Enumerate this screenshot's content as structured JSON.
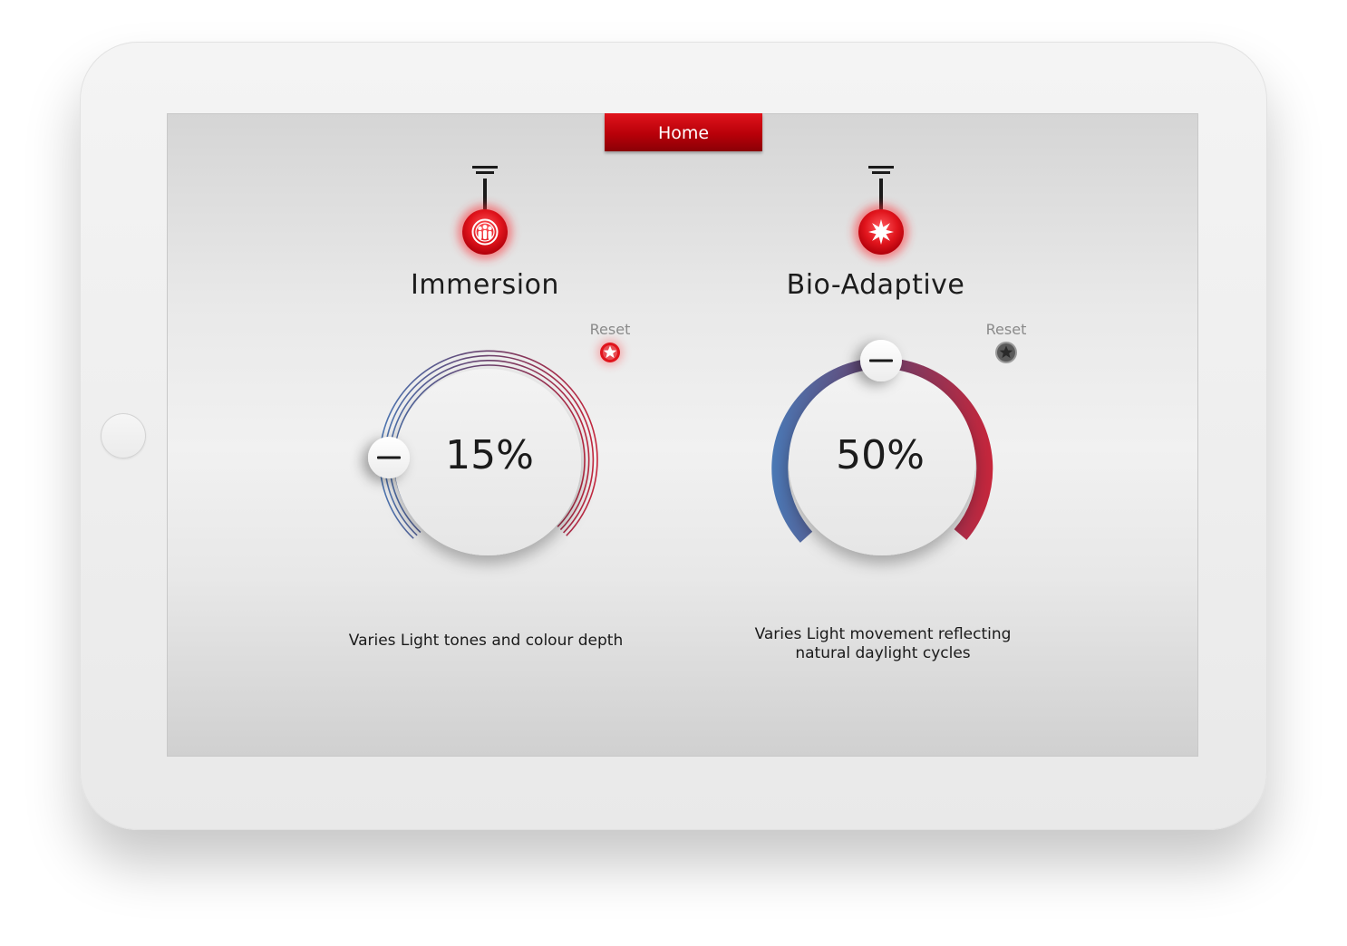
{
  "app": {
    "home_tab": "Home"
  },
  "panels": [
    {
      "title": "Immersion",
      "icon": "people-group-icon",
      "reset_label": "Reset",
      "value_text": "15%",
      "value": 15,
      "description": "Varies Light tones and colour depth"
    },
    {
      "title": "Bio-Adaptive",
      "icon": "sunburst-icon",
      "reset_label": "Reset",
      "value_text": "50%",
      "value": 50,
      "description_line1": "Varies Light movement reflecting",
      "description_line2": "natural daylight cycles"
    }
  ],
  "colors": {
    "accent_red": "#d0101a",
    "arc_blue": "#4a78b5",
    "arc_purple": "#6a3f6a",
    "arc_red": "#c8253a",
    "reset_active": "#e0141c",
    "reset_inactive": "#6a6a6a"
  }
}
